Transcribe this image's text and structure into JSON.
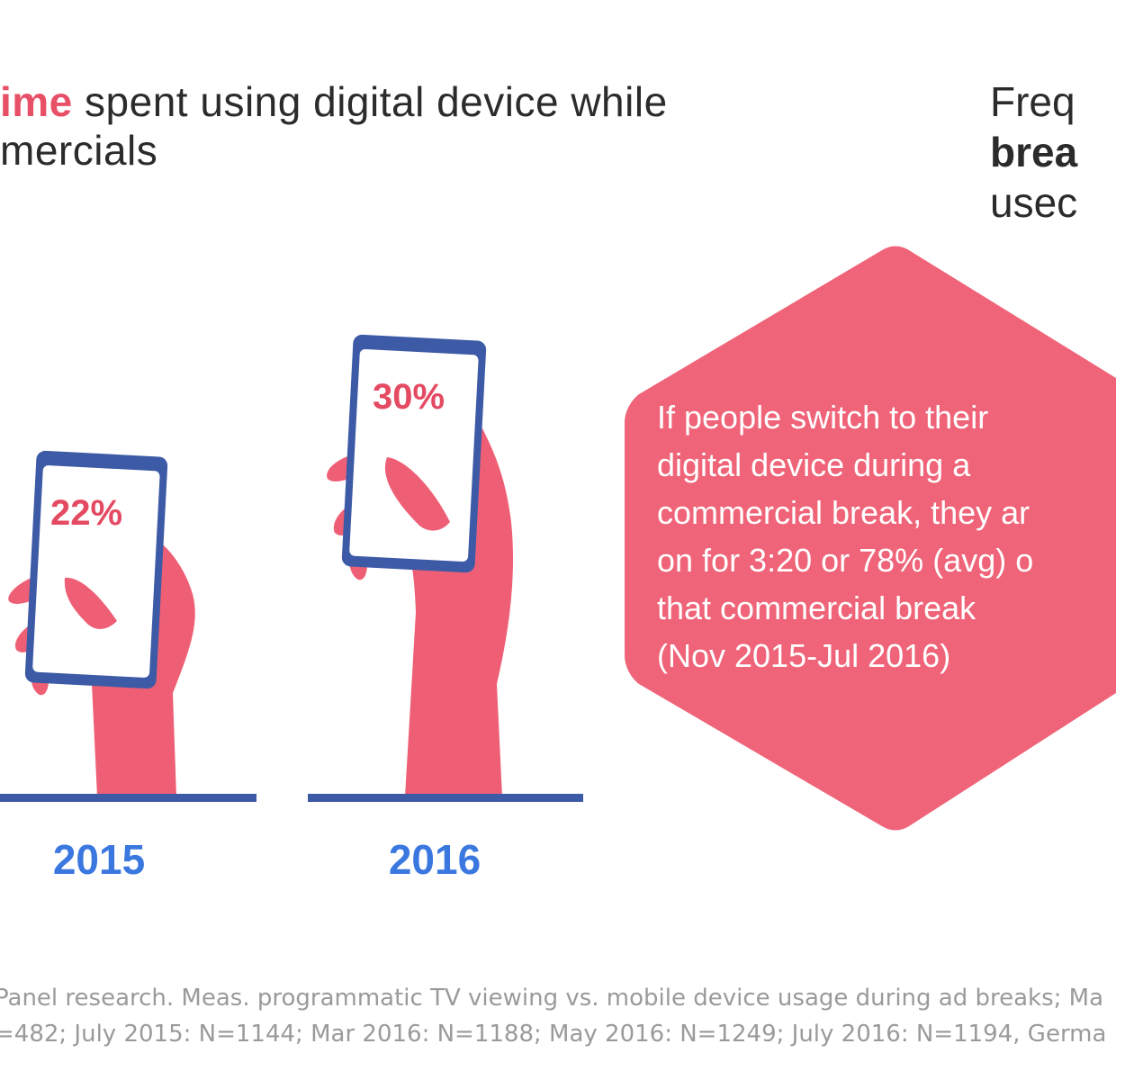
{
  "left_title": {
    "line1_accent": "ime",
    "line1_rest": " spent using digital device while",
    "line2": "mercials"
  },
  "right_title": {
    "line1": "Freq",
    "line2_accent": "brea",
    "line3": "usec"
  },
  "phones": [
    {
      "year": "2015",
      "value": "22%"
    },
    {
      "year": "2016",
      "value": "30%"
    }
  ],
  "callout": {
    "lines": [
      "If people switch to their",
      "digital device during a",
      "commercial break, they ar",
      "on for 3:20 or 78% (avg) o",
      "that commercial break",
      "(Nov 2015-Jul 2016)"
    ]
  },
  "footnote": {
    "line1": "Panel research. Meas. programmatic TV viewing vs. mobile device usage during ad breaks; Ma",
    "line2": "=482; July 2015: N=1144; Mar 2016: N=1188; May 2016: N=1249; July 2016: N=1194, Germa"
  },
  "colors": {
    "accent_pink": "#e85068",
    "hand_pink": "#ee5f75",
    "phone_blue": "#3d5aa6",
    "year_blue": "#3a78e0",
    "callout_pink": "#ef6478"
  }
}
